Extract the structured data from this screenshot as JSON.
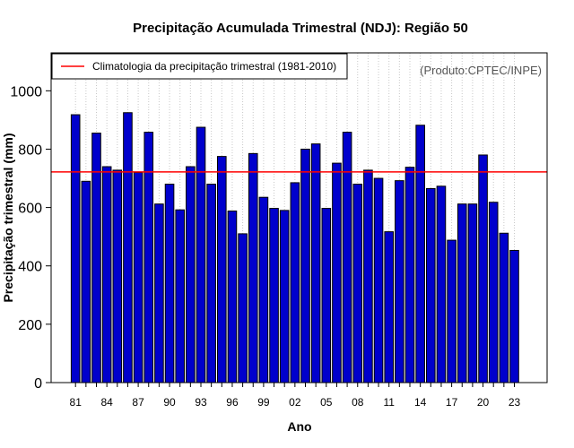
{
  "chart_data": {
    "type": "bar",
    "title": "Precipitação Acumulada Trimestral (NDJ): Região 50",
    "xlabel": "Ano",
    "ylabel": "Precipitação trimestral (mm)",
    "ylim": [
      0,
      1130
    ],
    "yticks": [
      0,
      200,
      400,
      600,
      800,
      1000
    ],
    "xtick_labels": [
      "81",
      "84",
      "87",
      "90",
      "93",
      "96",
      "99",
      "02",
      "05",
      "08",
      "11",
      "14",
      "17",
      "20",
      "23"
    ],
    "categories": [
      "1981",
      "1982",
      "1983",
      "1984",
      "1985",
      "1986",
      "1987",
      "1988",
      "1989",
      "1990",
      "1991",
      "1992",
      "1993",
      "1994",
      "1995",
      "1996",
      "1997",
      "1998",
      "1999",
      "2000",
      "2001",
      "2002",
      "2003",
      "2004",
      "2005",
      "2006",
      "2007",
      "2008",
      "2009",
      "2010",
      "2011",
      "2012",
      "2013",
      "2014",
      "2015",
      "2016",
      "2017",
      "2018",
      "2019",
      "2020",
      "2021",
      "2022",
      "2023"
    ],
    "values": [
      918,
      690,
      855,
      740,
      728,
      925,
      720,
      858,
      612,
      680,
      592,
      740,
      875,
      680,
      775,
      588,
      510,
      785,
      635,
      597,
      590,
      685,
      800,
      818,
      597,
      752,
      858,
      680,
      728,
      700,
      517,
      692,
      738,
      882,
      665,
      673,
      488,
      612,
      612,
      780,
      618,
      512,
      453
    ],
    "bar_color": "#0000cc",
    "bar_edge_color": "#000000",
    "reference_line": {
      "value": 722,
      "color": "#ff0000",
      "label": "Climatologia da precipitação trimestral (1981-2010)"
    },
    "legend_position": "top-left",
    "grid": "vertical-dotted",
    "annotation": "(Produto:CPTEC/INPE)"
  }
}
